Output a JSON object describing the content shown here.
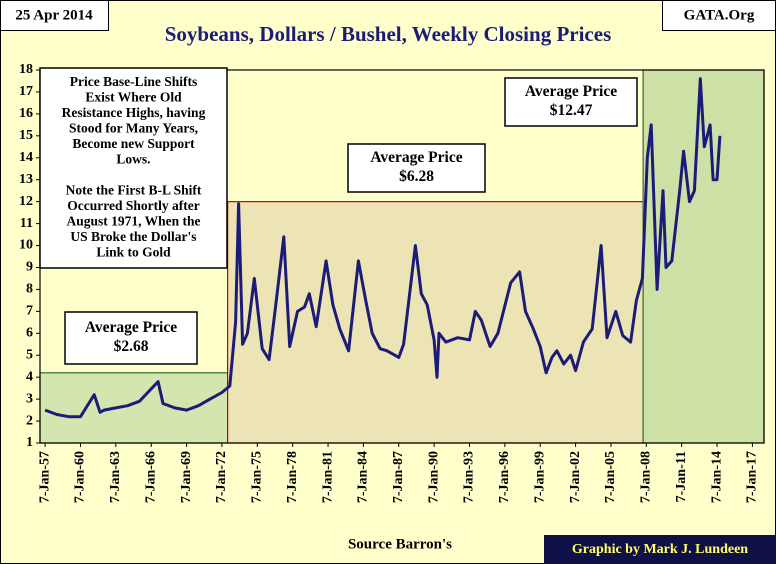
{
  "chart_data": {
    "type": "line",
    "title": "Soybeans, Dollars / Bushel, Weekly Closing Prices",
    "date_label": "25 Apr 2014",
    "source_label": "GATA.Org",
    "x_label": "Source Barron's",
    "credit": "Graphic by Mark J. Lundeen",
    "x": [
      "1957-01-07",
      "1958-01-07",
      "1959-01-07",
      "1960-01-07",
      "1961-03-07",
      "1961-09-07",
      "1962-01-07",
      "1963-01-07",
      "1964-01-07",
      "1965-01-07",
      "1966-08-07",
      "1967-01-07",
      "1968-01-07",
      "1969-01-07",
      "1970-01-07",
      "1971-01-07",
      "1972-01-07",
      "1972-09-07",
      "1973-03-07",
      "1973-06-07",
      "1973-10-07",
      "1974-03-07",
      "1974-10-07",
      "1975-06-07",
      "1976-01-07",
      "1976-07-07",
      "1977-04-07",
      "1977-10-07",
      "1978-06-07",
      "1979-01-07",
      "1979-06-07",
      "1980-01-07",
      "1980-11-07",
      "1981-06-07",
      "1982-01-07",
      "1982-10-07",
      "1983-08-07",
      "1984-03-07",
      "1984-10-07",
      "1985-06-07",
      "1986-01-07",
      "1987-01-07",
      "1987-06-07",
      "1988-06-07",
      "1988-12-07",
      "1989-06-07",
      "1990-01-07",
      "1990-04-07",
      "1990-06-07",
      "1991-01-07",
      "1992-01-07",
      "1993-01-07",
      "1993-07-07",
      "1994-01-07",
      "1994-10-07",
      "1995-06-07",
      "1996-07-07",
      "1997-04-07",
      "1997-10-07",
      "1998-06-07",
      "1999-01-07",
      "1999-07-07",
      "2000-01-07",
      "2000-06-07",
      "2001-01-07",
      "2001-08-07",
      "2002-01-07",
      "2002-09-07",
      "2003-06-07",
      "2004-03-07",
      "2004-09-07",
      "2005-06-07",
      "2006-01-07",
      "2006-09-07",
      "2007-03-07",
      "2007-09-07",
      "2008-02-07",
      "2008-06-07",
      "2008-12-07",
      "2009-06-07",
      "2009-09-07",
      "2010-03-07",
      "2010-11-07",
      "2011-03-07",
      "2011-09-07",
      "2012-02-07",
      "2012-08-07",
      "2012-12-07",
      "2013-06-07",
      "2013-09-07",
      "2014-01-07",
      "2014-04-07"
    ],
    "series": [
      {
        "name": "Soybeans",
        "color": "#1c1c78",
        "values": [
          2.5,
          2.3,
          2.2,
          2.2,
          3.2,
          2.4,
          2.5,
          2.6,
          2.7,
          2.9,
          3.8,
          2.8,
          2.6,
          2.5,
          2.7,
          3.0,
          3.3,
          3.6,
          6.5,
          11.9,
          5.5,
          6.0,
          8.5,
          5.3,
          4.8,
          7.0,
          10.4,
          5.4,
          7.0,
          7.2,
          7.8,
          6.3,
          9.3,
          7.3,
          6.2,
          5.2,
          9.3,
          7.6,
          6.0,
          5.3,
          5.2,
          4.9,
          5.5,
          10.0,
          7.8,
          7.3,
          5.7,
          4.0,
          6.0,
          5.6,
          5.8,
          5.7,
          7.0,
          6.6,
          5.4,
          6.0,
          8.3,
          8.8,
          7.0,
          6.2,
          5.4,
          4.2,
          4.9,
          5.2,
          4.6,
          5.0,
          4.3,
          5.6,
          6.2,
          10.0,
          5.8,
          7.0,
          5.9,
          5.6,
          7.5,
          8.5,
          14.0,
          15.5,
          8.0,
          12.5,
          9.0,
          9.3,
          12.5,
          14.3,
          12.0,
          12.5,
          17.6,
          14.5,
          15.5,
          13.0,
          13.0,
          15.0
        ]
      }
    ],
    "xlim": [
      "1956-08-01",
      "2018-01-01"
    ],
    "xticks": [
      {
        "value": "1957-01-07",
        "label": "7-Jan-57"
      },
      {
        "value": "1960-01-07",
        "label": "7-Jan-60"
      },
      {
        "value": "1963-01-07",
        "label": "7-Jan-63"
      },
      {
        "value": "1966-01-07",
        "label": "7-Jan-66"
      },
      {
        "value": "1969-01-07",
        "label": "7-Jan-69"
      },
      {
        "value": "1972-01-07",
        "label": "7-Jan-72"
      },
      {
        "value": "1975-01-07",
        "label": "7-Jan-75"
      },
      {
        "value": "1978-01-07",
        "label": "7-Jan-78"
      },
      {
        "value": "1981-01-07",
        "label": "7-Jan-81"
      },
      {
        "value": "1984-01-07",
        "label": "7-Jan-84"
      },
      {
        "value": "1987-01-07",
        "label": "7-Jan-87"
      },
      {
        "value": "1990-01-07",
        "label": "7-Jan-90"
      },
      {
        "value": "1993-01-07",
        "label": "7-Jan-93"
      },
      {
        "value": "1996-01-07",
        "label": "7-Jan-96"
      },
      {
        "value": "1999-01-07",
        "label": "7-Jan-99"
      },
      {
        "value": "2002-01-07",
        "label": "7-Jan-02"
      },
      {
        "value": "2005-01-07",
        "label": "7-Jan-05"
      },
      {
        "value": "2008-01-07",
        "label": "7-Jan-08"
      },
      {
        "value": "2011-01-07",
        "label": "7-Jan-11"
      },
      {
        "value": "2014-01-07",
        "label": "7-Jan-14"
      },
      {
        "value": "2017-01-07",
        "label": "7-Jan-17"
      }
    ],
    "ylim": [
      1,
      18
    ],
    "yticks": [
      1,
      2,
      3,
      4,
      5,
      6,
      7,
      8,
      9,
      10,
      11,
      12,
      13,
      14,
      15,
      16,
      17,
      18
    ],
    "grid": false,
    "regions": [
      {
        "start": "1956-08-01",
        "end": "1972-07-01",
        "top": 4.2,
        "color": "#d4e6b0",
        "border": "#2f6b2f"
      },
      {
        "start": "1972-07-01",
        "end": "2007-10-01",
        "top": 12,
        "color": "#ece4b4",
        "border": "#cc0000"
      },
      {
        "start": "2007-10-01",
        "end": "2018-01-01",
        "top": 18,
        "color": "#cde0a6",
        "border": "#2f6b2f"
      }
    ],
    "annotations": [
      {
        "lines": [
          "Price Base-Line Shifts",
          "Exist Where Old",
          "Resistance Highs,  having",
          "Stood for Many Years,",
          "Become new Support",
          "Lows.",
          "",
          "Note the First B-L Shift",
          "Occurred Shortly after",
          "August 1971, When the",
          "US Broke the Dollar's",
          "Link to Gold"
        ]
      },
      {
        "lines": [
          "Average Price",
          "$2.68"
        ]
      },
      {
        "lines": [
          "Average Price",
          "$6.28"
        ]
      },
      {
        "lines": [
          "Average Price",
          "$12.47"
        ]
      }
    ]
  }
}
